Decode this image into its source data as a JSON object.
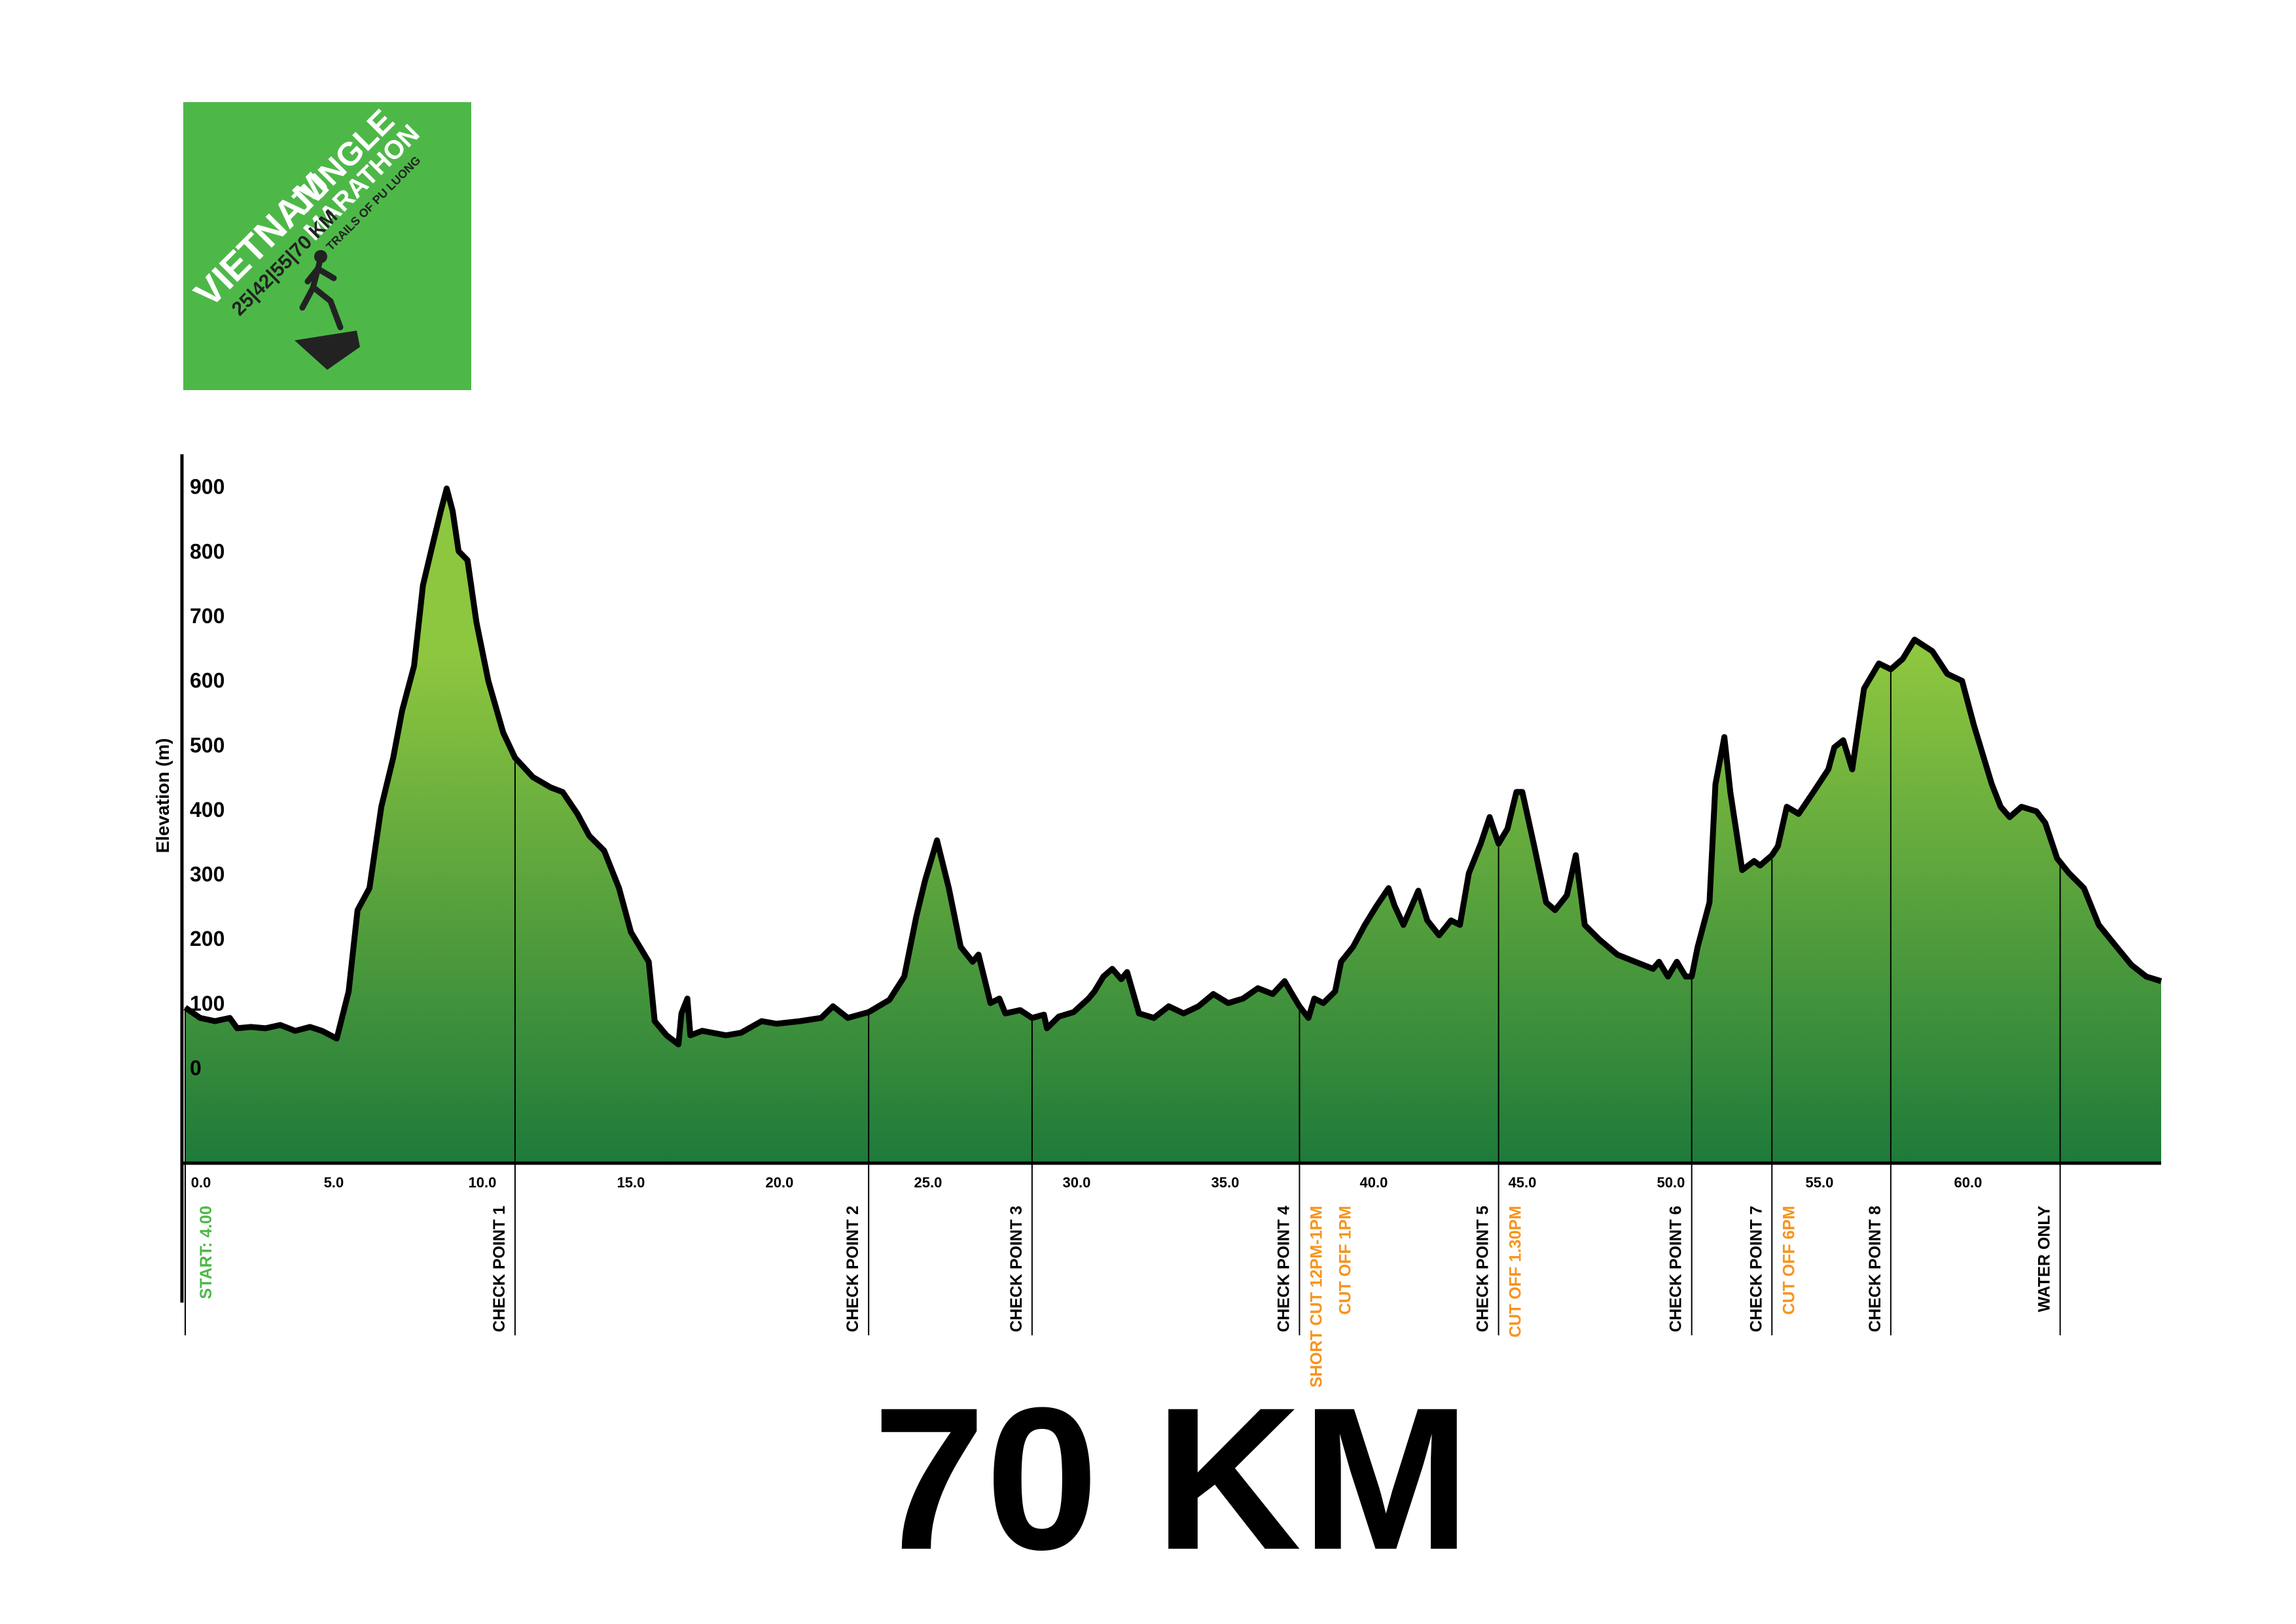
{
  "logo": {
    "line1": "VIETNAM",
    "line2": "JUNGLE",
    "line3": "MARATHON",
    "line4": "25|42|55|70 KM",
    "line5": "TRAILS OF PU LUONG"
  },
  "chart_data": {
    "type": "area",
    "title": "70 KM",
    "ylabel": "Elevation (m)",
    "color": "#000000",
    "fill_colors": [
      "#8dc63f",
      "#1e7a3a"
    ],
    "note_color": "#f7941d",
    "xlim": [
      0,
      66.5
    ],
    "ylim": [
      -145,
      953
    ],
    "xticks": [
      {
        "value": 0,
        "label": "0.0"
      },
      {
        "value": 5,
        "label": "5.0"
      },
      {
        "value": 10,
        "label": "10.0"
      },
      {
        "value": 15,
        "label": "15.0"
      },
      {
        "value": 20,
        "label": "20.0"
      },
      {
        "value": 25,
        "label": "25.0"
      },
      {
        "value": 30,
        "label": "30.0"
      },
      {
        "value": 35,
        "label": "35.0"
      },
      {
        "value": 40,
        "label": "40.0"
      },
      {
        "value": 45,
        "label": "45.0"
      },
      {
        "value": 50,
        "label": "50.0"
      },
      {
        "value": 55,
        "label": "55.0"
      },
      {
        "value": 60,
        "label": "60.0"
      }
    ],
    "yticks": [
      0,
      100,
      200,
      300,
      400,
      500,
      600,
      700,
      800,
      900
    ],
    "x": [
      0,
      0.5,
      1.0,
      1.5,
      1.75,
      2.2,
      2.7,
      3.2,
      3.7,
      4.2,
      4.6,
      5.1,
      5.5,
      5.8,
      6.2,
      6.6,
      7.0,
      7.3,
      7.7,
      8.0,
      8.3,
      8.6,
      8.8,
      9.0,
      9.2,
      9.5,
      9.8,
      10.2,
      10.7,
      11.1,
      11.7,
      12.3,
      12.7,
      13.2,
      13.6,
      14.1,
      14.6,
      15.0,
      15.6,
      15.8,
      16.2,
      16.6,
      16.7,
      16.9,
      17.0,
      17.4,
      18.2,
      18.7,
      19.4,
      19.9,
      20.7,
      21.4,
      21.8,
      22.3,
      23.0,
      23.7,
      24.2,
      24.6,
      24.9,
      25.3,
      25.7,
      26.1,
      26.5,
      26.7,
      27.1,
      27.4,
      27.6,
      28.1,
      28.5,
      28.9,
      29.0,
      29.4,
      29.9,
      30.4,
      30.6,
      30.9,
      31.2,
      31.5,
      31.7,
      32.1,
      32.6,
      33.1,
      33.6,
      34.1,
      34.6,
      35.1,
      35.6,
      36.1,
      36.6,
      37.0,
      37.2,
      37.5,
      37.8,
      38.0,
      38.3,
      38.7,
      38.9,
      39.3,
      39.7,
      40.1,
      40.5,
      40.7,
      41.0,
      41.5,
      41.8,
      42.2,
      42.6,
      42.9,
      43.2,
      43.6,
      43.9,
      44.2,
      44.5,
      44.8,
      45.0,
      45.4,
      45.8,
      46.1,
      46.5,
      46.8,
      47.1,
      47.6,
      48.2,
      48.8,
      49.4,
      49.6,
      49.9,
      50.2,
      50.5,
      50.7,
      50.9,
      51.3,
      51.5,
      51.8,
      52.0,
      52.4,
      52.8,
      53.0,
      53.4,
      53.6,
      53.9,
      54.3,
      54.8,
      55.3,
      55.5,
      55.8,
      56.1,
      56.5,
      57.0,
      57.4,
      57.8,
      58.2,
      58.8,
      59.3,
      59.8,
      60.2,
      60.8,
      61.1,
      61.4,
      61.8,
      62.3,
      62.6,
      63.0,
      63.4,
      63.9,
      64.4,
      65.0,
      65.5,
      66.0,
      66.5
    ],
    "values": [
      96,
      80,
      75,
      80,
      64,
      66,
      64,
      69,
      60,
      66,
      60,
      48,
      121,
      247,
      281,
      407,
      483,
      556,
      625,
      750,
      808,
      865,
      900,
      865,
      803,
      789,
      693,
      602,
      522,
      483,
      453,
      437,
      430,
      396,
      362,
      339,
      281,
      213,
      167,
      75,
      53,
      39,
      87,
      110,
      53,
      60,
      53,
      57,
      75,
      71,
      75,
      80,
      98,
      80,
      89,
      108,
      144,
      236,
      293,
      355,
      281,
      190,
      167,
      178,
      103,
      110,
      87,
      92,
      80,
      85,
      64,
      82,
      89,
      110,
      121,
      144,
      156,
      140,
      151,
      87,
      80,
      98,
      87,
      98,
      117,
      103,
      110,
      126,
      117,
      137,
      121,
      98,
      80,
      110,
      103,
      121,
      167,
      190,
      224,
      254,
      281,
      254,
      224,
      277,
      231,
      208,
      231,
      224,
      304,
      350,
      391,
      350,
      373,
      430,
      430,
      346,
      259,
      247,
      270,
      332,
      224,
      201,
      178,
      167,
      156,
      167,
      144,
      167,
      144,
      144,
      190,
      259,
      442,
      515,
      430,
      309,
      323,
      316,
      332,
      346,
      407,
      396,
      430,
      465,
      499,
      510,
      465,
      590,
      629,
      620,
      636,
      666,
      648,
      613,
      602,
      533,
      442,
      407,
      391,
      407,
      400,
      382,
      327,
      304,
      281,
      224,
      190,
      162,
      144,
      137
    ],
    "markers": [
      {
        "x": 0,
        "label": "START: 4.00",
        "color": "#4db848"
      },
      {
        "x": 11.1,
        "label": "CHECK POINT 1"
      },
      {
        "x": 23.0,
        "label": "CHECK POINT 2"
      },
      {
        "x": 28.5,
        "label": "CHECK POINT 3"
      },
      {
        "x": 37.5,
        "label": "CHECK POINT 4",
        "notes": [
          "SHORT CUT 12PM-1PM",
          "CUT OFF 1PM"
        ]
      },
      {
        "x": 44.2,
        "label": "CHECK POINT 5",
        "notes": [
          "CUT OFF 1.30PM"
        ]
      },
      {
        "x": 50.7,
        "label": "CHECK POINT 6"
      },
      {
        "x": 53.4,
        "label": "CHECK POINT 7",
        "notes": [
          "CUT OFF 6PM"
        ]
      },
      {
        "x": 57.4,
        "label": "CHECK POINT 8"
      },
      {
        "x": 63.1,
        "label": "WATER ONLY"
      }
    ]
  }
}
